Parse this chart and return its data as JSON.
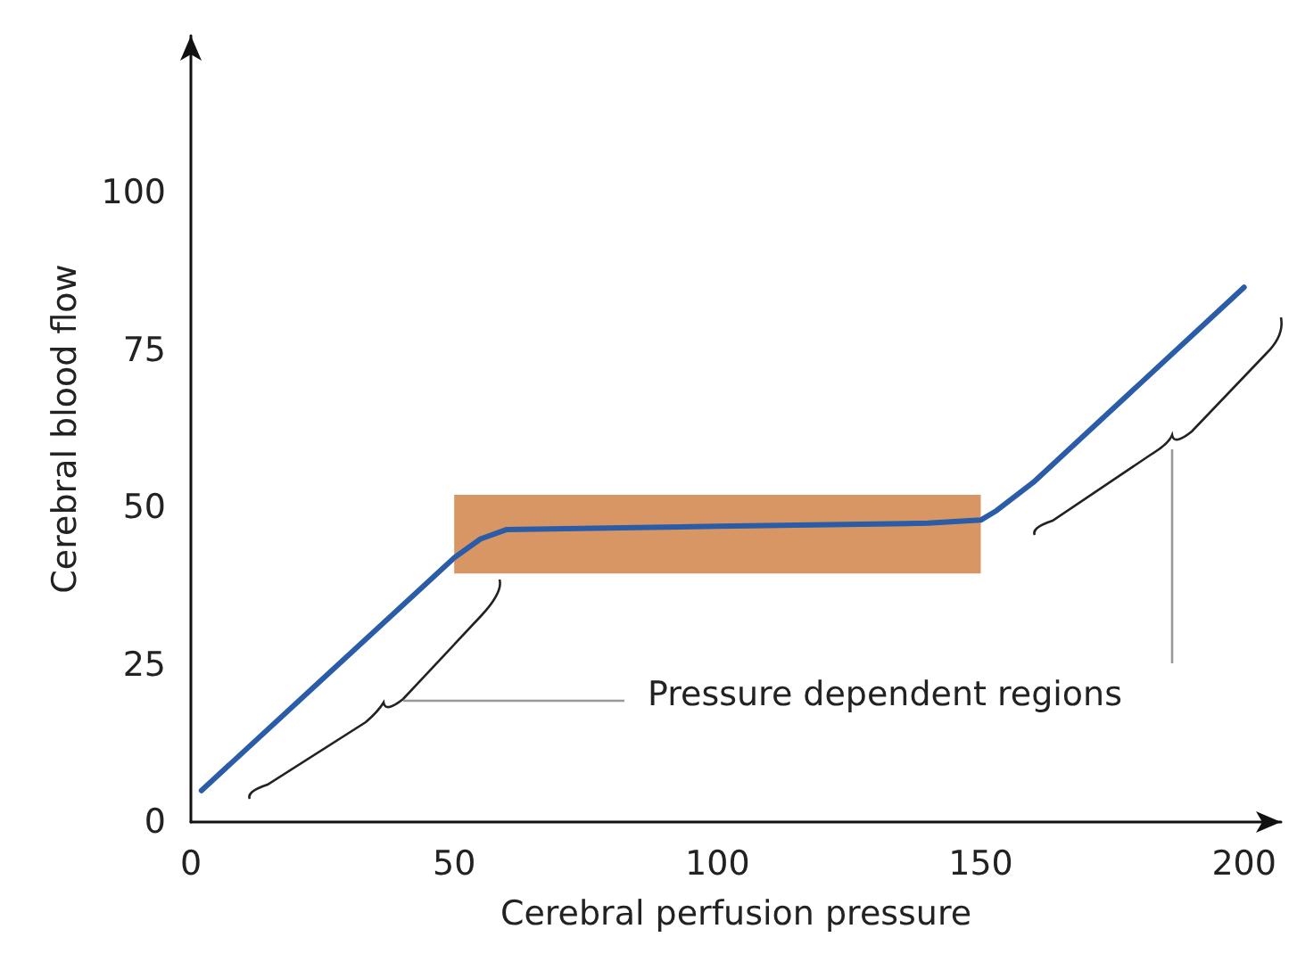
{
  "chart_data": {
    "type": "line",
    "xlabel": "Cerebral perfusion pressure",
    "ylabel": "Cerebral blood flow",
    "x": [
      2,
      50,
      55,
      60,
      100,
      140,
      150,
      153,
      160,
      200
    ],
    "series": [
      {
        "color": "#2b5ca8",
        "values": [
          5,
          42,
          45,
          46.5,
          47,
          47.5,
          48,
          49.5,
          54,
          85
        ]
      }
    ],
    "xlim": [
      0,
      207
    ],
    "xticks": [
      0,
      50,
      100,
      150,
      200
    ],
    "ylim": [
      0,
      125
    ],
    "yticks": [
      0,
      25,
      50,
      75,
      100
    ],
    "bands": [
      {
        "axis": "x",
        "from": 50,
        "to": 150,
        "color": "#d2844a"
      }
    ],
    "annotations": [
      "Pressure dependent regions"
    ],
    "grid": false,
    "marker": "none",
    "line_style": "solid"
  }
}
